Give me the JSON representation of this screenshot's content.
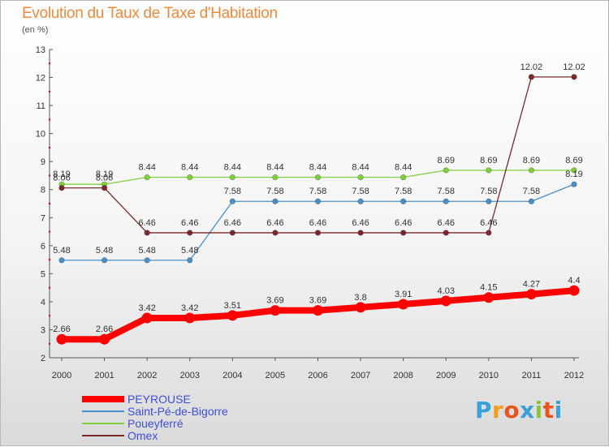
{
  "chart_title": "Evolution du Taux de Taxe d'Habitation",
  "chart_unit": "(en %)",
  "logo": "Proxiti",
  "logo_colors": [
    "#3aa0d8",
    "#f2a01b",
    "#e8541e",
    "#3aa0d8",
    "#8ac43f",
    "#e8541e",
    "#3aa0d8"
  ],
  "chart_data": {
    "type": "line",
    "title": "Evolution du Taux de Taxe d'Habitation",
    "ylabel": "(en %)",
    "x": [
      "2000",
      "2001",
      "2002",
      "2003",
      "2004",
      "2005",
      "2006",
      "2007",
      "2008",
      "2009",
      "2010",
      "2011",
      "2012"
    ],
    "ylim": [
      2,
      13
    ],
    "yticks": [
      2,
      3,
      4,
      5,
      6,
      7,
      8,
      9,
      10,
      11,
      12,
      13
    ],
    "grid": false,
    "legend_position": "bottom-left",
    "series": [
      {
        "name": "PEYROUSE",
        "color": "#ff0000",
        "values": [
          2.66,
          2.66,
          3.42,
          3.42,
          3.51,
          3.69,
          3.69,
          3.8,
          3.91,
          4.03,
          4.15,
          4.27,
          4.4
        ],
        "labels": [
          "2.66",
          "2.66",
          "3.42",
          "3.42",
          "3.51",
          "3.69",
          "3.69",
          "3.8",
          "3.91",
          "4.03",
          "4.15",
          "4.27",
          "4.4"
        ]
      },
      {
        "name": "Saint-Pé-de-Bigorre",
        "color": "#4a90c8",
        "values": [
          5.48,
          5.48,
          5.48,
          5.48,
          7.58,
          7.58,
          7.58,
          7.58,
          7.58,
          7.58,
          7.58,
          7.58,
          8.19
        ],
        "labels": [
          "5.48",
          "5.48",
          "5.48",
          "5.48",
          "7.58",
          "7.58",
          "7.58",
          "7.58",
          "7.58",
          "7.58",
          "7.58",
          "7.58",
          "8.19"
        ]
      },
      {
        "name": "Poueyferré",
        "color": "#7fd13b",
        "values": [
          8.19,
          8.19,
          8.44,
          8.44,
          8.44,
          8.44,
          8.44,
          8.44,
          8.44,
          8.69,
          8.69,
          8.69,
          8.69
        ],
        "labels": [
          "8.19",
          "8.19",
          "8.44",
          "8.44",
          "8.44",
          "8.44",
          "8.44",
          "8.44",
          "8.44",
          "8.69",
          "8.69",
          "8.69",
          "8.69"
        ]
      },
      {
        "name": "Omex",
        "color": "#7a2a2a",
        "values": [
          8.06,
          8.06,
          6.46,
          6.46,
          6.46,
          6.46,
          6.46,
          6.46,
          6.46,
          6.46,
          6.46,
          12.02,
          12.02
        ],
        "labels": [
          "8.06",
          "8.06",
          "6.46",
          "6.46",
          "6.46",
          "6.46",
          "6.46",
          "6.46",
          "6.46",
          "6.46",
          "6.46",
          "12.02",
          "12.02"
        ]
      }
    ]
  }
}
